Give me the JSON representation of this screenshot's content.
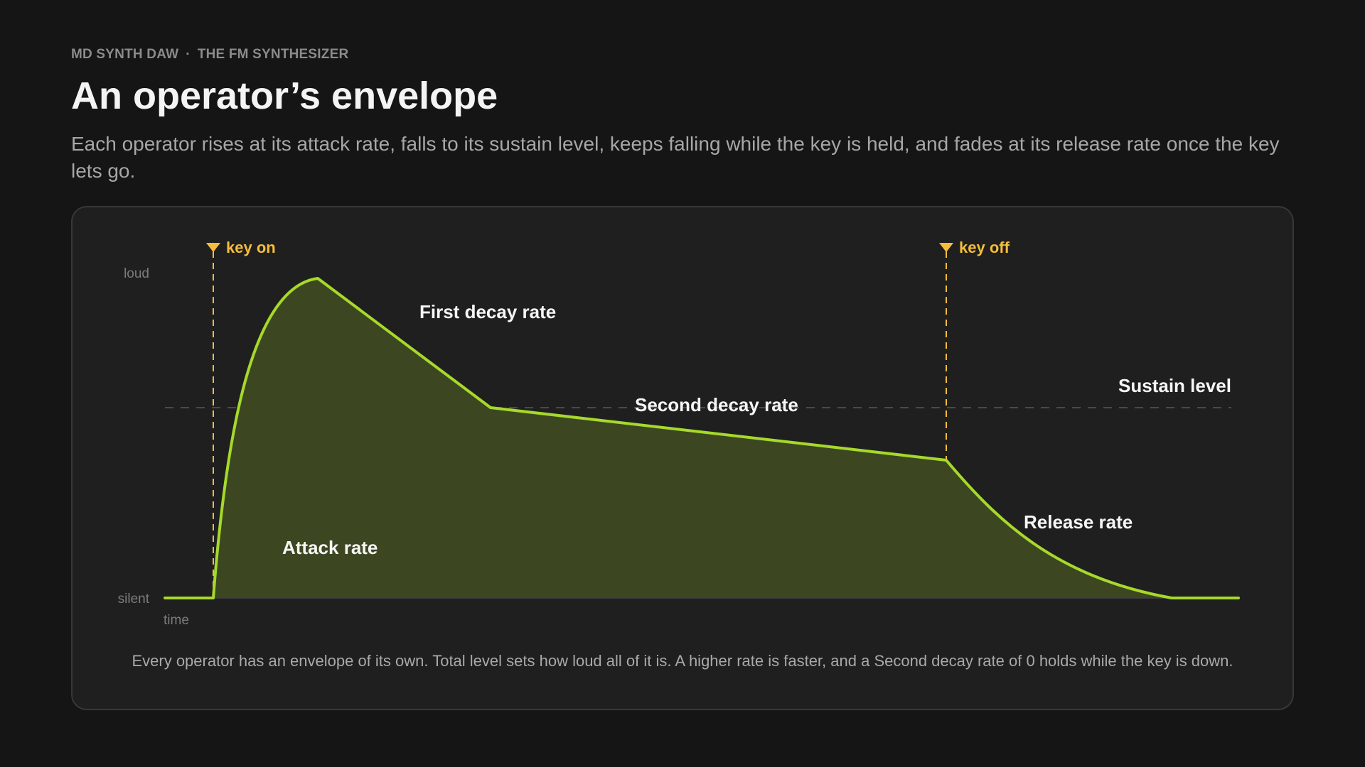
{
  "header": {
    "eyebrow_app": "MD SYNTH DAW",
    "eyebrow_sep": "·",
    "eyebrow_section": "THE FM SYNTHESIZER",
    "title": "An operator’s envelope",
    "subtitle": "Each operator rises at its attack rate, falls to its sustain level, keeps falling while the key is held, and fades at its release rate once the key lets go."
  },
  "diagram": {
    "axis": {
      "top_label": "loud",
      "bottom_label": "silent",
      "time_label": "time"
    },
    "markers": {
      "key_on": "key on",
      "key_off": "key off"
    },
    "stages": {
      "attack": "Attack rate",
      "first_decay": "First decay rate",
      "second_decay": "Second decay rate",
      "sustain": "Sustain level",
      "release": "Release rate"
    },
    "caption": "Every operator has an envelope of its own. Total level sets how loud all of it is. A higher rate is faster, and a Second decay rate of 0 holds while the key is down."
  },
  "colors": {
    "background": "#151515",
    "card": "#1f1f1f",
    "envelope_line": "#a6d92a",
    "envelope_fill": "#3c4722",
    "key_marker": "#f5bd3c"
  }
}
